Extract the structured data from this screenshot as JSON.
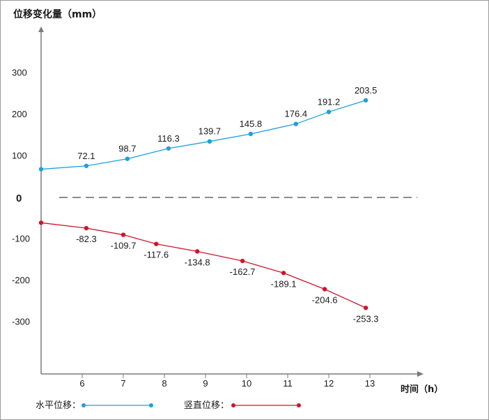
{
  "chart_data": {
    "type": "line",
    "ylabel": "位移变化量（mm）",
    "xlabel": "时间（h）",
    "x_ticks": [
      6,
      7,
      8,
      9,
      10,
      11,
      12,
      13
    ],
    "y_ticks": [
      300,
      200,
      100,
      0,
      -100,
      -200,
      -300
    ],
    "xlim": [
      5.1,
      14.3
    ],
    "ylim": [
      -440,
      400
    ],
    "zero_line": "dashed",
    "grid": false,
    "legend_position": "bottom-left",
    "series": [
      {
        "name": "水平位移",
        "color": "#1ba1dc",
        "points": [
          {
            "x": 5.0,
            "y": 68,
            "label": ""
          },
          {
            "x": 6.1,
            "y": 76,
            "label": "72.1"
          },
          {
            "x": 7.1,
            "y": 93,
            "label": "98.7"
          },
          {
            "x": 8.1,
            "y": 118,
            "label": "116.3"
          },
          {
            "x": 9.1,
            "y": 135,
            "label": "139.7"
          },
          {
            "x": 10.1,
            "y": 153,
            "label": "145.8"
          },
          {
            "x": 11.2,
            "y": 177,
            "label": "176.4"
          },
          {
            "x": 12.0,
            "y": 206,
            "label": "191.2"
          },
          {
            "x": 12.9,
            "y": 234,
            "label": "203.5"
          }
        ]
      },
      {
        "name": "竖直位移",
        "color": "#d0142a",
        "points": [
          {
            "x": 5.0,
            "y": -61,
            "label": ""
          },
          {
            "x": 6.1,
            "y": -74,
            "label": "-82.3"
          },
          {
            "x": 7.0,
            "y": -90,
            "label": "-109.7"
          },
          {
            "x": 7.8,
            "y": -112,
            "label": "-117.6"
          },
          {
            "x": 8.8,
            "y": -130,
            "label": "-134.8"
          },
          {
            "x": 9.9,
            "y": -153,
            "label": "-162.7"
          },
          {
            "x": 10.9,
            "y": -182,
            "label": "-189.1"
          },
          {
            "x": 11.9,
            "y": -221,
            "label": "-204.6"
          },
          {
            "x": 12.9,
            "y": -266,
            "label": "-253.3"
          }
        ]
      }
    ]
  }
}
